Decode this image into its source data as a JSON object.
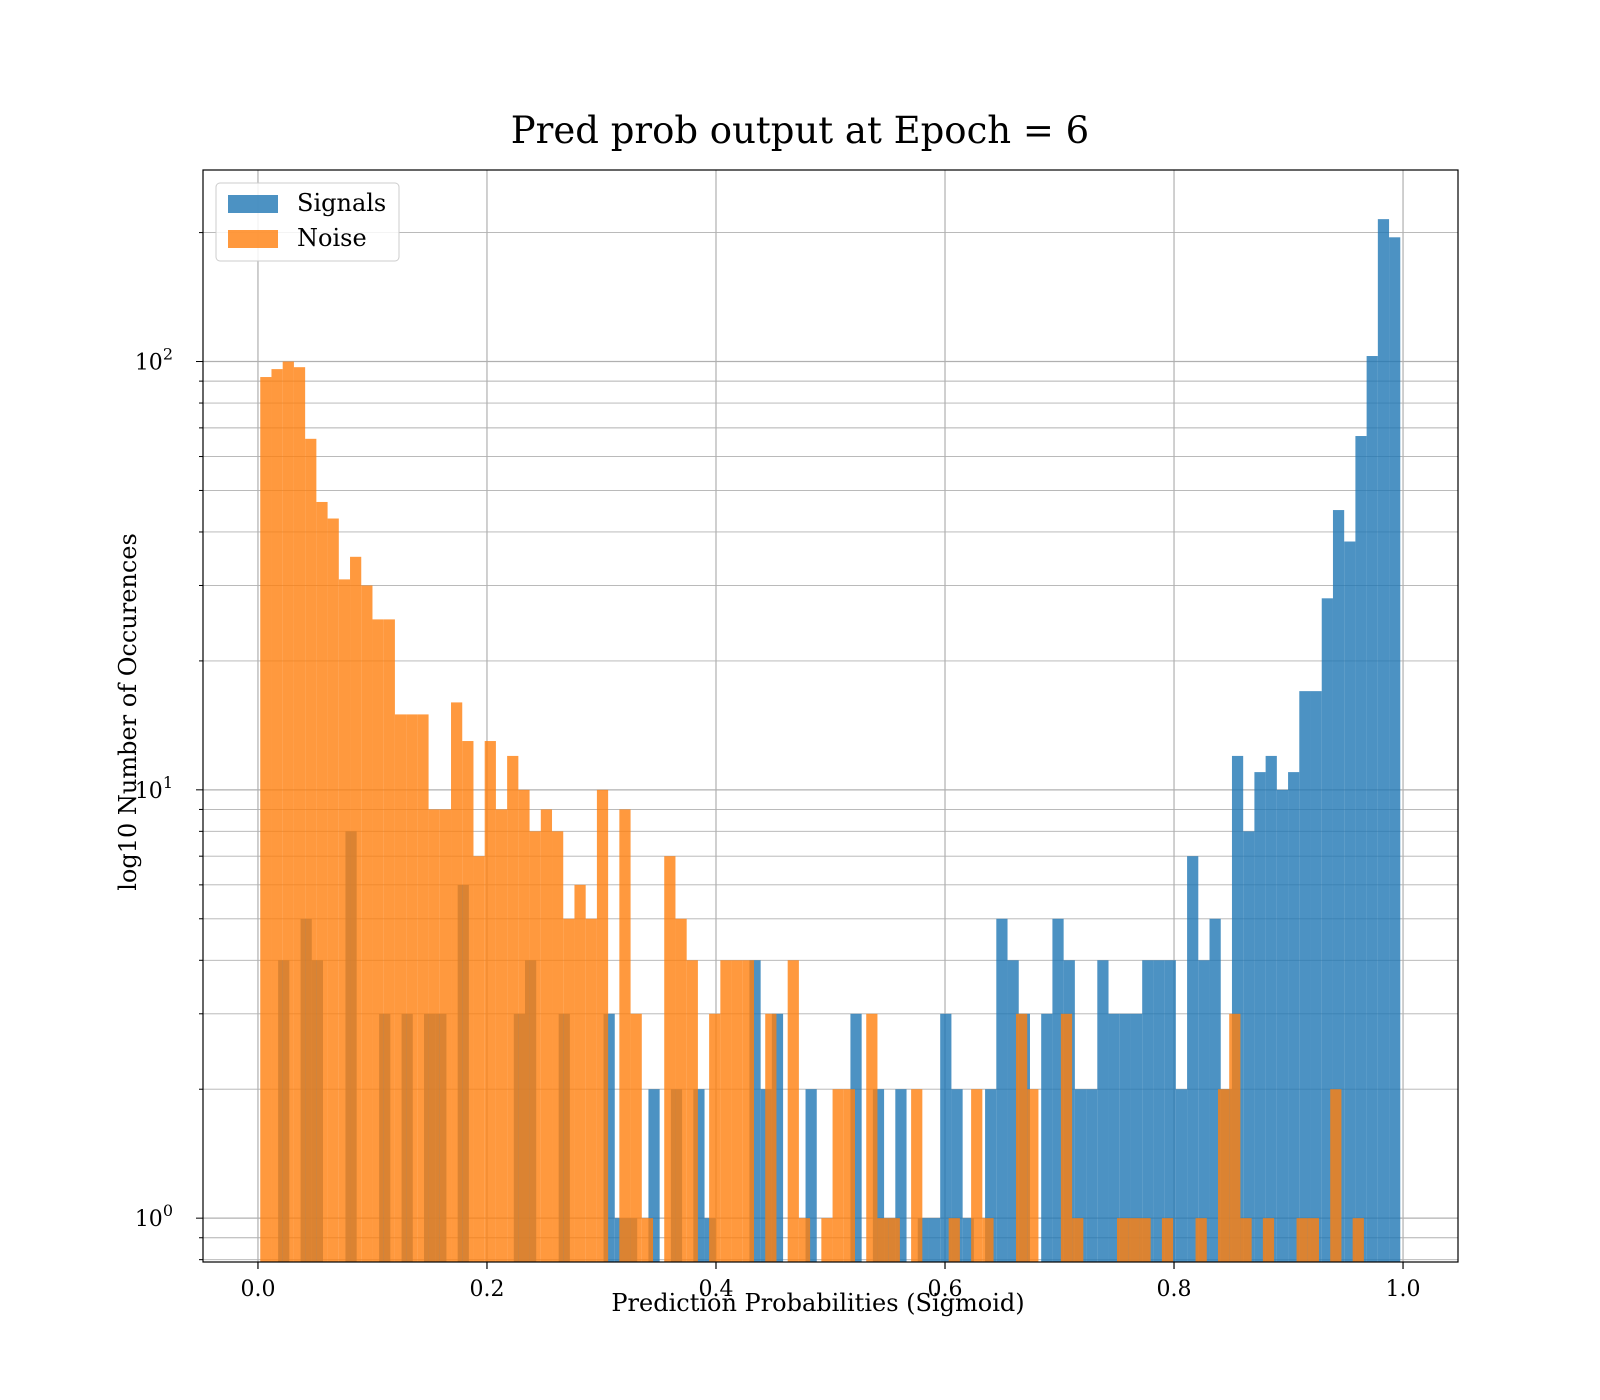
{
  "chart_data": {
    "type": "bar",
    "title": "Pred prob output at Epoch = 6",
    "xlabel": "Prediction Probabilities (Sigmoid)",
    "ylabel": "log10 Number of Occurences",
    "x_scale": "linear",
    "y_scale": "log",
    "xlim": [
      -0.048,
      1.048
    ],
    "ylim": [
      0.79,
      280
    ],
    "x_ticks": [
      {
        "value": 0.0,
        "label": "0.0"
      },
      {
        "value": 0.2,
        "label": "0.2"
      },
      {
        "value": 0.4,
        "label": "0.4"
      },
      {
        "value": 0.6,
        "label": "0.6"
      },
      {
        "value": 0.8,
        "label": "0.8"
      },
      {
        "value": 1.0,
        "label": "1.0"
      }
    ],
    "y_ticks": [
      {
        "value": 1,
        "base": "10",
        "exp": "0"
      },
      {
        "value": 10,
        "base": "10",
        "exp": "1"
      },
      {
        "value": 100,
        "base": "10",
        "exp": "2"
      }
    ],
    "grid": true,
    "legend": {
      "position": "top-left"
    },
    "series": [
      {
        "name": "Signals",
        "color": "#1f77b4",
        "alpha": 0.8,
        "bins": [
          [
            0.0176,
            0.0274,
            4
          ],
          [
            0.0372,
            0.047,
            5
          ],
          [
            0.047,
            0.0568,
            4
          ],
          [
            0.0764,
            0.0862,
            8
          ],
          [
            0.1058,
            0.1156,
            3
          ],
          [
            0.1254,
            0.1352,
            3
          ],
          [
            0.145,
            0.1548,
            3
          ],
          [
            0.1548,
            0.1646,
            3
          ],
          [
            0.1744,
            0.1842,
            6
          ],
          [
            0.2234,
            0.2332,
            3
          ],
          [
            0.2332,
            0.243,
            4
          ],
          [
            0.2626,
            0.2724,
            3
          ],
          [
            0.3018,
            0.3116,
            3
          ],
          [
            0.3116,
            0.3214,
            1
          ],
          [
            0.3214,
            0.3312,
            1
          ],
          [
            0.341,
            0.3508,
            2
          ],
          [
            0.3606,
            0.3704,
            2
          ],
          [
            0.3802,
            0.39,
            2
          ],
          [
            0.39,
            0.3998,
            1
          ],
          [
            0.4292,
            0.439,
            4
          ],
          [
            0.439,
            0.4488,
            2
          ],
          [
            0.4488,
            0.4586,
            3
          ],
          [
            0.4782,
            0.488,
            2
          ],
          [
            0.5174,
            0.5272,
            3
          ],
          [
            0.537,
            0.5468,
            2
          ],
          [
            0.5468,
            0.5566,
            1
          ],
          [
            0.5566,
            0.5664,
            2
          ],
          [
            0.5762,
            0.586,
            1
          ],
          [
            0.586,
            0.5958,
            1
          ],
          [
            0.5958,
            0.6056,
            3
          ],
          [
            0.6056,
            0.6154,
            2
          ],
          [
            0.6154,
            0.6252,
            1
          ],
          [
            0.635,
            0.6448,
            2
          ],
          [
            0.6448,
            0.6546,
            5
          ],
          [
            0.6546,
            0.6644,
            4
          ],
          [
            0.6644,
            0.6742,
            3
          ],
          [
            0.684,
            0.6938,
            3
          ],
          [
            0.6938,
            0.7036,
            5
          ],
          [
            0.7036,
            0.7134,
            4
          ],
          [
            0.7134,
            0.7232,
            2
          ],
          [
            0.7232,
            0.733,
            2
          ],
          [
            0.733,
            0.7428,
            4
          ],
          [
            0.7428,
            0.7526,
            3
          ],
          [
            0.7526,
            0.7624,
            3
          ],
          [
            0.7624,
            0.7722,
            3
          ],
          [
            0.7722,
            0.782,
            4
          ],
          [
            0.782,
            0.7918,
            4
          ],
          [
            0.7918,
            0.8016,
            4
          ],
          [
            0.8016,
            0.8114,
            2
          ],
          [
            0.8114,
            0.8212,
            7
          ],
          [
            0.8212,
            0.831,
            4
          ],
          [
            0.831,
            0.8408,
            5
          ],
          [
            0.8408,
            0.8506,
            2
          ],
          [
            0.8506,
            0.8604,
            12
          ],
          [
            0.8604,
            0.8702,
            8
          ],
          [
            0.8702,
            0.88,
            11
          ],
          [
            0.88,
            0.8898,
            12
          ],
          [
            0.8898,
            0.8996,
            10
          ],
          [
            0.8996,
            0.9094,
            11
          ],
          [
            0.9094,
            0.9192,
            17
          ],
          [
            0.9192,
            0.929,
            17
          ],
          [
            0.929,
            0.9388,
            28
          ],
          [
            0.9388,
            0.9486,
            45
          ],
          [
            0.9486,
            0.9584,
            38
          ],
          [
            0.9584,
            0.9682,
            67
          ],
          [
            0.9682,
            0.978,
            103
          ],
          [
            0.978,
            0.9878,
            215
          ],
          [
            0.9878,
            0.9976,
            195
          ]
        ]
      },
      {
        "name": "Noise",
        "color": "#ff7f0e",
        "alpha": 0.8,
        "bins": [
          [
            0.002,
            0.0118,
            92
          ],
          [
            0.0118,
            0.0216,
            96
          ],
          [
            0.0216,
            0.0314,
            100
          ],
          [
            0.0314,
            0.0412,
            97
          ],
          [
            0.0412,
            0.051,
            66
          ],
          [
            0.051,
            0.0608,
            47
          ],
          [
            0.0608,
            0.0706,
            43
          ],
          [
            0.0706,
            0.0804,
            31
          ],
          [
            0.0804,
            0.0902,
            35
          ],
          [
            0.0902,
            0.1,
            30
          ],
          [
            0.1,
            0.1098,
            25
          ],
          [
            0.1098,
            0.1196,
            25
          ],
          [
            0.1196,
            0.1294,
            15
          ],
          [
            0.1294,
            0.1392,
            15
          ],
          [
            0.1392,
            0.149,
            15
          ],
          [
            0.149,
            0.1588,
            9
          ],
          [
            0.1588,
            0.1686,
            9
          ],
          [
            0.1686,
            0.1784,
            16
          ],
          [
            0.1784,
            0.1882,
            13
          ],
          [
            0.1882,
            0.198,
            7
          ],
          [
            0.198,
            0.2078,
            13
          ],
          [
            0.2078,
            0.2176,
            9
          ],
          [
            0.2176,
            0.2274,
            12
          ],
          [
            0.2274,
            0.2372,
            10
          ],
          [
            0.2372,
            0.247,
            8
          ],
          [
            0.247,
            0.2568,
            9
          ],
          [
            0.2568,
            0.2666,
            8
          ],
          [
            0.2666,
            0.2764,
            5
          ],
          [
            0.2764,
            0.2862,
            6
          ],
          [
            0.2862,
            0.296,
            5
          ],
          [
            0.296,
            0.3058,
            10
          ],
          [
            0.3156,
            0.3254,
            9
          ],
          [
            0.3254,
            0.3352,
            3
          ],
          [
            0.3352,
            0.345,
            1
          ],
          [
            0.3548,
            0.3646,
            7
          ],
          [
            0.3646,
            0.3744,
            5
          ],
          [
            0.3744,
            0.3842,
            4
          ],
          [
            0.394,
            0.4038,
            3
          ],
          [
            0.4038,
            0.4136,
            4
          ],
          [
            0.4136,
            0.4234,
            4
          ],
          [
            0.4234,
            0.4332,
            4
          ],
          [
            0.443,
            0.4528,
            3
          ],
          [
            0.4626,
            0.4724,
            4
          ],
          [
            0.4724,
            0.4822,
            1
          ],
          [
            0.492,
            0.5018,
            1
          ],
          [
            0.5018,
            0.5116,
            2
          ],
          [
            0.5116,
            0.5214,
            2
          ],
          [
            0.5312,
            0.541,
            3
          ],
          [
            0.541,
            0.5508,
            1
          ],
          [
            0.5508,
            0.5606,
            1
          ],
          [
            0.5704,
            0.5802,
            2
          ],
          [
            0.6032,
            0.613,
            1
          ],
          [
            0.6228,
            0.6326,
            2
          ],
          [
            0.6326,
            0.6424,
            1
          ],
          [
            0.662,
            0.6718,
            3
          ],
          [
            0.6718,
            0.6816,
            2
          ],
          [
            0.7012,
            0.711,
            3
          ],
          [
            0.711,
            0.7208,
            1
          ],
          [
            0.7502,
            0.76,
            1
          ],
          [
            0.76,
            0.7698,
            1
          ],
          [
            0.7698,
            0.7796,
            1
          ],
          [
            0.7894,
            0.7992,
            1
          ],
          [
            0.8188,
            0.8286,
            1
          ],
          [
            0.8384,
            0.8482,
            2
          ],
          [
            0.8482,
            0.858,
            3
          ],
          [
            0.858,
            0.8678,
            1
          ],
          [
            0.8776,
            0.8874,
            1
          ],
          [
            0.907,
            0.9168,
            1
          ],
          [
            0.9168,
            0.9266,
            1
          ],
          [
            0.9364,
            0.9462,
            2
          ],
          [
            0.956,
            0.9658,
            1
          ]
        ]
      }
    ]
  }
}
